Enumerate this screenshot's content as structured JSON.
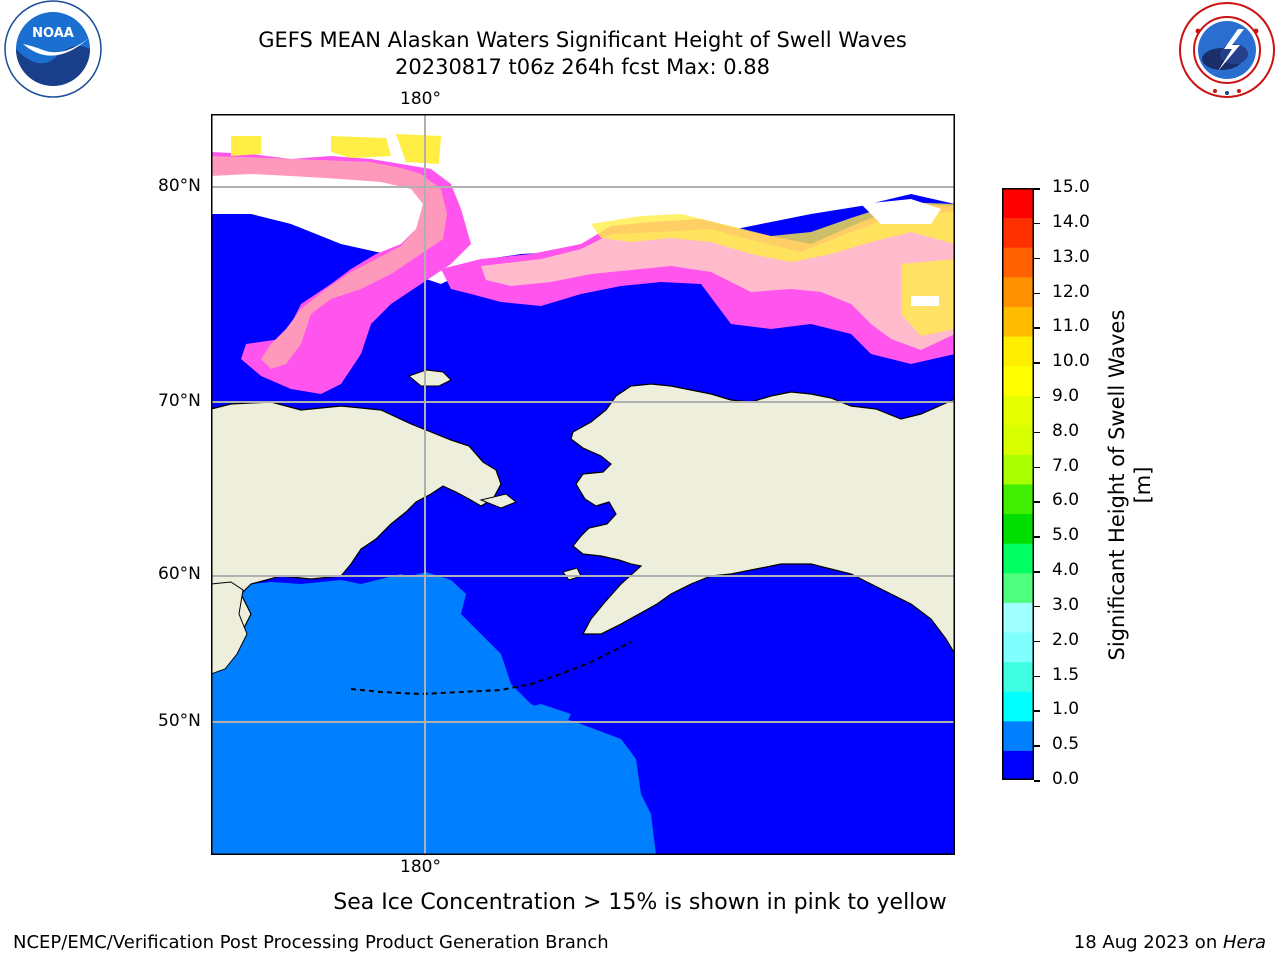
{
  "header": {
    "title_line1": "GEFS MEAN Alaskan Waters Significant Height of Swell Waves",
    "title_line2": "20230817 t06z 264h fcst   Max: 0.88"
  },
  "logos": {
    "noaa": {
      "text": "NOAA",
      "ring_text": "NATIONAL OCEANIC AND ATMOSPHERIC ADMINISTRATION · U.S. DEPARTMENT OF COMMERCE"
    },
    "nws": {
      "ring_text": "NATIONAL WEATHER SERVICE"
    }
  },
  "map": {
    "lon_label_top": "180°",
    "lon_label_bottom": "180°",
    "lat_labels": [
      "80°N",
      "70°N",
      "60°N",
      "50°N"
    ],
    "colors": {
      "ocean_low": "#0000ff",
      "ocean_mid": "#0080ff",
      "land": "#eeeedd",
      "ice_pink": "#ff55ee",
      "ice_salmon": "#ff99bb",
      "ice_yellow": "#ffee44"
    }
  },
  "colorbar": {
    "label": "Significant Height of Swell Waves [m]",
    "ticks": [
      "15.0",
      "14.0",
      "13.0",
      "12.0",
      "11.0",
      "10.0",
      "9.0",
      "8.0",
      "7.0",
      "6.0",
      "5.0",
      "4.0",
      "3.0",
      "2.0",
      "1.5",
      "1.0",
      "0.5",
      "0.0"
    ],
    "colors": [
      "#0000ff",
      "#0080ff",
      "#00ffff",
      "#40ffe0",
      "#80ffff",
      "#a0ffff",
      "#50ff80",
      "#00ff60",
      "#00dd00",
      "#40ee00",
      "#aaff00",
      "#d8ff00",
      "#e6ff00",
      "#ffff00",
      "#ffee00",
      "#ffbb00",
      "#ff9000",
      "#ff6000",
      "#ff3000",
      "#ff0000"
    ]
  },
  "annotation": "Sea Ice Concentration > 15% is shown in pink to yellow",
  "footer": {
    "left": "NCEP/EMC/Verification Post Processing Product Generation Branch",
    "right_date": "18 Aug 2023 on ",
    "right_host": "Hera"
  }
}
